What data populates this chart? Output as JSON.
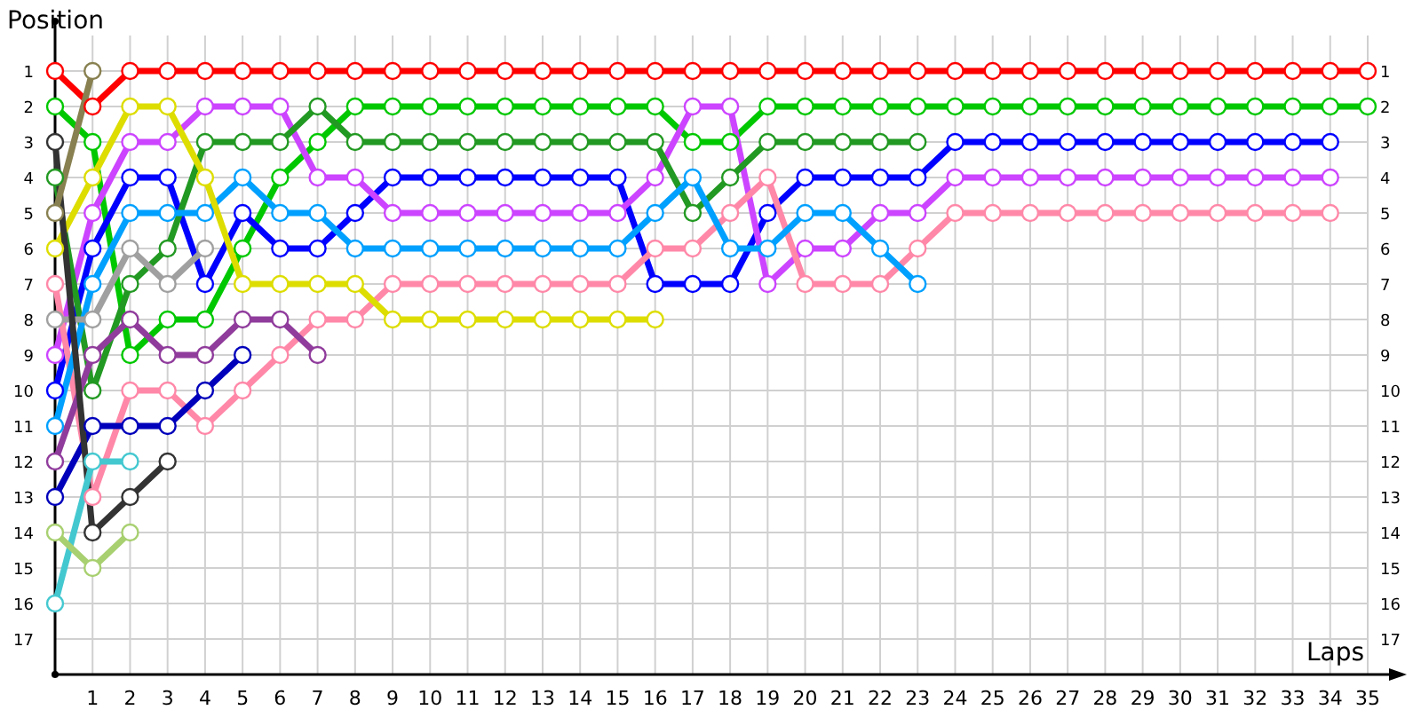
{
  "chart_data": {
    "type": "line",
    "xlabel": "Laps",
    "ylabel": "Position",
    "x": [
      0,
      1,
      2,
      3,
      4,
      5,
      6,
      7,
      8,
      9,
      10,
      11,
      12,
      13,
      14,
      15,
      16,
      17,
      18,
      19,
      20,
      21,
      22,
      23,
      24,
      25,
      26,
      27,
      28,
      29,
      30,
      31,
      32,
      33,
      34,
      35
    ],
    "xlim": [
      0,
      35
    ],
    "xticks": [
      1,
      2,
      3,
      4,
      5,
      6,
      7,
      8,
      9,
      10,
      11,
      12,
      13,
      14,
      15,
      16,
      17,
      18,
      19,
      20,
      21,
      22,
      23,
      24,
      25,
      26,
      27,
      28,
      29,
      30,
      31,
      32,
      33,
      34,
      35
    ],
    "ylim": [
      18,
      0
    ],
    "yticks": [
      1,
      2,
      3,
      4,
      5,
      6,
      7,
      8,
      9,
      10,
      11,
      12,
      13,
      14,
      15,
      16,
      17
    ],
    "y2lim": [
      18,
      0
    ],
    "y2ticks": [
      1,
      2,
      3,
      4,
      5,
      6,
      7,
      8,
      9,
      10,
      11,
      12,
      13,
      14,
      15,
      16,
      17
    ],
    "grid": true,
    "marker": "circle",
    "line_style": "solid",
    "series": [
      {
        "color": "#ff0000",
        "values": [
          1,
          2,
          1,
          1,
          1,
          1,
          1,
          1,
          1,
          1,
          1,
          1,
          1,
          1,
          1,
          1,
          1,
          1,
          1,
          1,
          1,
          1,
          1,
          1,
          1,
          1,
          1,
          1,
          1,
          1,
          1,
          1,
          1,
          1,
          1,
          1
        ]
      },
      {
        "color": "#00c800",
        "values": [
          2,
          3,
          9,
          8,
          8,
          6,
          4,
          3,
          2,
          2,
          2,
          2,
          2,
          2,
          2,
          2,
          2,
          3,
          3,
          2,
          2,
          2,
          2,
          2,
          2,
          2,
          2,
          2,
          2,
          2,
          2,
          2,
          2,
          2,
          2,
          2
        ]
      },
      {
        "color": "#0000ff",
        "values": [
          10,
          6,
          4,
          4,
          7,
          5,
          6,
          6,
          5,
          4,
          4,
          4,
          4,
          4,
          4,
          4,
          7,
          7,
          7,
          5,
          4,
          4,
          4,
          4,
          3,
          3,
          3,
          3,
          3,
          3,
          3,
          3,
          3,
          3,
          3,
          null
        ]
      },
      {
        "color": "#cc44ff",
        "values": [
          9,
          5,
          3,
          3,
          2,
          2,
          2,
          4,
          4,
          5,
          5,
          5,
          5,
          5,
          5,
          5,
          4,
          2,
          2,
          7,
          6,
          6,
          5,
          5,
          4,
          4,
          4,
          4,
          4,
          4,
          4,
          4,
          4,
          4,
          4,
          null
        ]
      },
      {
        "color": "#ff88a8",
        "values": [
          7,
          13,
          10,
          10,
          11,
          10,
          9,
          8,
          8,
          7,
          7,
          7,
          7,
          7,
          7,
          7,
          6,
          6,
          5,
          4,
          7,
          7,
          7,
          6,
          5,
          5,
          5,
          5,
          5,
          5,
          5,
          5,
          5,
          5,
          5,
          null
        ]
      },
      {
        "color": "#229922",
        "values": [
          4,
          10,
          7,
          6,
          3,
          3,
          3,
          2,
          3,
          3,
          3,
          3,
          3,
          3,
          3,
          3,
          3,
          5,
          4,
          3,
          3,
          3,
          3,
          3,
          null,
          null,
          null,
          null,
          null,
          null,
          null,
          null,
          null,
          null,
          null,
          null
        ]
      },
      {
        "color": "#00a0ff",
        "values": [
          11,
          7,
          5,
          5,
          5,
          4,
          5,
          5,
          6,
          6,
          6,
          6,
          6,
          6,
          6,
          6,
          5,
          4,
          6,
          6,
          5,
          5,
          6,
          7,
          null,
          null,
          null,
          null,
          null,
          null,
          null,
          null,
          null,
          null,
          null,
          null
        ]
      },
      {
        "color": "#dddd00",
        "values": [
          6,
          4,
          2,
          2,
          4,
          7,
          7,
          7,
          7,
          8,
          8,
          8,
          8,
          8,
          8,
          8,
          8,
          null,
          null,
          null,
          null,
          null,
          null,
          null,
          null,
          null,
          null,
          null,
          null,
          null,
          null,
          null,
          null,
          null,
          null,
          null
        ]
      },
      {
        "color": "#903c9c",
        "values": [
          12,
          9,
          8,
          9,
          9,
          8,
          8,
          9,
          null,
          null,
          null,
          null,
          null,
          null,
          null,
          null,
          null,
          null,
          null,
          null,
          null,
          null,
          null,
          null,
          null,
          null,
          null,
          null,
          null,
          null,
          null,
          null,
          null,
          null,
          null,
          null
        ]
      },
      {
        "color": "#0000bb",
        "values": [
          13,
          11,
          11,
          11,
          10,
          9,
          null,
          null,
          null,
          null,
          null,
          null,
          null,
          null,
          null,
          null,
          null,
          null,
          null,
          null,
          null,
          null,
          null,
          null,
          null,
          null,
          null,
          null,
          null,
          null,
          null,
          null,
          null,
          null,
          null,
          null
        ]
      },
      {
        "color": "#a0a0a0",
        "values": [
          8,
          8,
          6,
          7,
          6,
          null,
          null,
          null,
          null,
          null,
          null,
          null,
          null,
          null,
          null,
          null,
          null,
          null,
          null,
          null,
          null,
          null,
          null,
          null,
          null,
          null,
          null,
          null,
          null,
          null,
          null,
          null,
          null,
          null,
          null,
          null
        ]
      },
      {
        "color": "#333333",
        "values": [
          3,
          14,
          13,
          12,
          null,
          null,
          null,
          null,
          null,
          null,
          null,
          null,
          null,
          null,
          null,
          null,
          null,
          null,
          null,
          null,
          null,
          null,
          null,
          null,
          null,
          null,
          null,
          null,
          null,
          null,
          null,
          null,
          null,
          null,
          null,
          null
        ]
      },
      {
        "color": "#44c8d0",
        "values": [
          16,
          12,
          12,
          null,
          null,
          null,
          null,
          null,
          null,
          null,
          null,
          null,
          null,
          null,
          null,
          null,
          null,
          null,
          null,
          null,
          null,
          null,
          null,
          null,
          null,
          null,
          null,
          null,
          null,
          null,
          null,
          null,
          null,
          null,
          null,
          null
        ]
      },
      {
        "color": "#a8d070",
        "values": [
          14,
          15,
          14,
          null,
          null,
          null,
          null,
          null,
          null,
          null,
          null,
          null,
          null,
          null,
          null,
          null,
          null,
          null,
          null,
          null,
          null,
          null,
          null,
          null,
          null,
          null,
          null,
          null,
          null,
          null,
          null,
          null,
          null,
          null,
          null,
          null
        ]
      },
      {
        "color": "#888050",
        "values": [
          5,
          1,
          null,
          null,
          null,
          null,
          null,
          null,
          null,
          null,
          null,
          null,
          null,
          null,
          null,
          null,
          null,
          null,
          null,
          null,
          null,
          null,
          null,
          null,
          null,
          null,
          null,
          null,
          null,
          null,
          null,
          null,
          null,
          null,
          null,
          null
        ]
      }
    ]
  }
}
